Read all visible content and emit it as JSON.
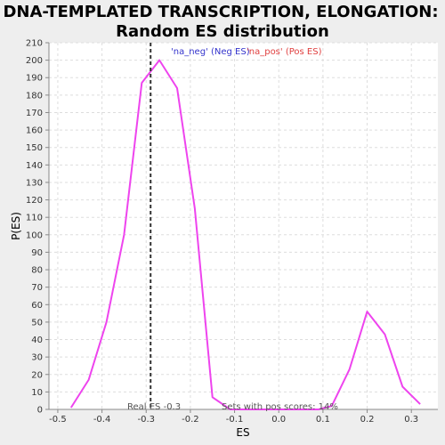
{
  "chart_data": {
    "type": "line",
    "title_line1": "DNA-TEMPLATED TRANSCRIPTION, ELONGATION:",
    "title_line2": "Random ES distribution",
    "xlabel": "ES",
    "ylabel": "P(ES)",
    "xlim": [
      -0.52,
      0.36
    ],
    "ylim": [
      0,
      210
    ],
    "x_ticks": [
      -0.5,
      -0.4,
      -0.3,
      -0.2,
      -0.1,
      0.0,
      0.1,
      0.2,
      0.3
    ],
    "x_tick_labels": [
      "-0.5",
      "-0.4",
      "-0.3",
      "-0.2",
      "-0.1",
      "0.0",
      "0.1",
      "0.2",
      "0.3"
    ],
    "y_ticks": [
      0,
      10,
      20,
      30,
      40,
      50,
      60,
      70,
      80,
      90,
      100,
      110,
      120,
      130,
      140,
      150,
      160,
      170,
      180,
      190,
      200,
      210
    ],
    "grid": true,
    "legend": [
      {
        "label": "'na_neg' (Neg ES)",
        "color": "#3333cc"
      },
      {
        "label": "'na_pos' (Pos ES)",
        "color": "#e04040"
      }
    ],
    "series": [
      {
        "color": "#ee44ee",
        "x": [
          -0.47,
          -0.43,
          -0.39,
          -0.35,
          -0.31,
          -0.27,
          -0.23,
          -0.19,
          -0.15,
          -0.11,
          -0.07,
          -0.03,
          0.01,
          0.05,
          0.09,
          0.12,
          0.16,
          0.2,
          0.24,
          0.28,
          0.32
        ],
        "y": [
          1,
          17,
          50,
          100,
          187,
          200,
          184,
          115,
          7,
          0,
          0,
          0,
          0,
          0,
          0,
          2,
          23,
          56,
          43,
          13,
          3
        ]
      }
    ],
    "real_es": -0.29,
    "real_es_label": "Real ES -0.3",
    "pos_scores_label": "Sets with pos scores: 14%"
  }
}
